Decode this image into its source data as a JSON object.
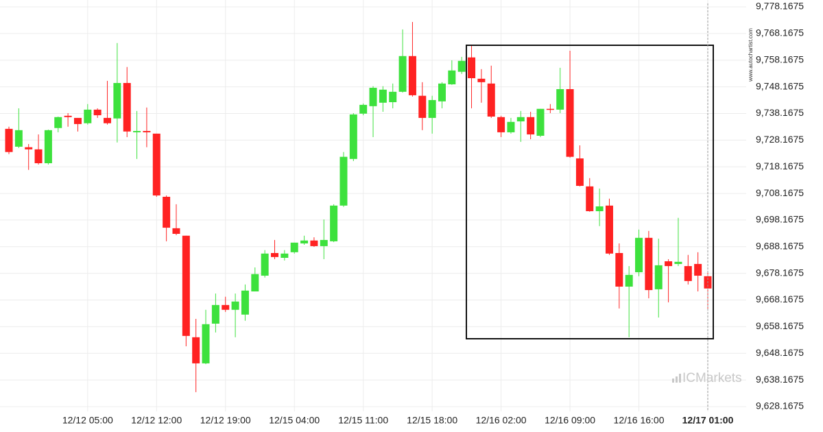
{
  "chart_data": {
    "type": "candlestick",
    "source": "www.autochartist.com",
    "brand": "ICMarkets",
    "up_color": "#3de13d",
    "down_color": "#ff2222",
    "grid": true,
    "categories": [
      null,
      null,
      null,
      null,
      null,
      null,
      null,
      null,
      "12/12 05:00",
      null,
      null,
      null,
      null,
      null,
      null,
      "12/12 12:00",
      null,
      null,
      null,
      null,
      null,
      null,
      "12/12 19:00",
      null,
      null,
      null,
      null,
      null,
      null,
      "12/15 04:00",
      null,
      null,
      null,
      null,
      null,
      null,
      "12/15 11:00",
      null,
      null,
      null,
      null,
      null,
      null,
      "12/15 18:00",
      null,
      null,
      null,
      null,
      null,
      null,
      "12/16 02:00",
      null,
      null,
      null,
      null,
      null,
      null,
      "12/16 09:00",
      null,
      null,
      null,
      null,
      null,
      null,
      "12/16 16:00",
      null,
      null,
      null,
      null,
      null,
      null,
      "12/17 01:00"
    ],
    "open": [
      9732.4,
      9725.7,
      9725.5,
      9724.7,
      9719.5,
      9732.7,
      9737.3,
      9736.5,
      9734.5,
      9739.6,
      9736.5,
      9736.3,
      9749.6,
      9731.1,
      9731.6,
      9730.6,
      9706.9,
      9695.1,
      9692.3,
      9654.2,
      9644.4,
      9659.3,
      9666.3,
      9664.5,
      9662.7,
      9671.4,
      9677.3,
      9685.8,
      9684.0,
      9686.1,
      9689.4,
      9690.5,
      9688.4,
      9690.2,
      9703.6,
      9721.1,
      9738.1,
      9740.9,
      9742.2,
      9742.4,
      9746.3,
      9759.7,
      9744.8,
      9736.5,
      9742.7,
      9749.1,
      9753.8,
      9759.2,
      9751.2,
      9749.4,
      9736.8,
      9731.1,
      9735.2,
      9736.8,
      9729.8,
      9739.9,
      9739.6,
      9747.3,
      9721.3,
      9710.8,
      9701.5,
      9703.6,
      9685.8,
      9673.2,
      9678.6,
      9691.5,
      9672.2,
      9682.7,
      9681.7,
      9680.9,
      9681.7,
      9677.1
    ],
    "high": [
      9733.2,
      9740.1,
      9726.7,
      9730.3,
      9732.1,
      9737.0,
      9738.3,
      9736.5,
      9741.7,
      9740.1,
      9750.4,
      9764.6,
      9755.6,
      9739.1,
      9740.4,
      9730.6,
      9707.4,
      9704.1,
      9692.3,
      9661.1,
      9664.5,
      9670.6,
      9669.4,
      9670.6,
      9674.0,
      9680.4,
      9686.9,
      9690.7,
      9686.9,
      9689.7,
      9692.3,
      9691.7,
      9698.4,
      9704.1,
      9723.7,
      9738.3,
      9741.9,
      9748.4,
      9748.4,
      9749.4,
      9769.7,
      9772.5,
      9749.9,
      9744.8,
      9749.9,
      9758.1,
      9759.4,
      9763.5,
      9754.8,
      9756.1,
      9737.3,
      9736.5,
      9739.1,
      9738.8,
      9739.9,
      9741.7,
      9755.3,
      9761.7,
      9726.2,
      9713.9,
      9710.0,
      9706.2,
      9689.4,
      9680.9,
      9694.6,
      9694.1,
      9691.2,
      9683.5,
      9699.0,
      9685.1,
      9686.1,
      9678.4
    ],
    "low": [
      9722.9,
      9725.2,
      9717.0,
      9719.0,
      9719.0,
      9731.1,
      9733.2,
      9731.4,
      9734.0,
      9736.5,
      9734.0,
      9727.3,
      9729.3,
      9721.1,
      9725.5,
      9706.9,
      9690.2,
      9692.5,
      9650.8,
      9633.6,
      9644.1,
      9656.0,
      9663.7,
      9654.2,
      9660.4,
      9671.4,
      9676.6,
      9683.5,
      9683.0,
      9685.6,
      9688.9,
      9688.1,
      9683.5,
      9689.9,
      9703.1,
      9720.3,
      9737.5,
      9729.3,
      9738.8,
      9740.1,
      9746.0,
      9744.5,
      9731.9,
      9730.6,
      9740.1,
      9748.9,
      9753.0,
      9740.1,
      9742.2,
      9736.5,
      9729.3,
      9730.6,
      9727.5,
      9728.5,
      9729.3,
      9738.3,
      9738.3,
      9721.6,
      9710.8,
      9701.3,
      9695.9,
      9685.1,
      9665.0,
      9654.2,
      9677.1,
      9668.8,
      9661.6,
      9667.3,
      9680.9,
      9674.0,
      9671.4,
      9664.5
    ],
    "close": [
      9723.7,
      9731.9,
      9724.7,
      9719.5,
      9731.9,
      9736.8,
      9736.8,
      9734.2,
      9739.6,
      9737.5,
      9734.5,
      9749.6,
      9731.4,
      9731.6,
      9731.1,
      9707.4,
      9695.3,
      9693.0,
      9654.7,
      9644.4,
      9659.1,
      9666.3,
      9664.5,
      9667.6,
      9671.7,
      9677.9,
      9685.6,
      9684.3,
      9685.6,
      9689.7,
      9690.5,
      9688.4,
      9690.7,
      9703.6,
      9721.9,
      9737.8,
      9741.4,
      9747.8,
      9747.1,
      9746.3,
      9759.7,
      9745.0,
      9736.5,
      9743.2,
      9749.4,
      9754.3,
      9757.9,
      9751.4,
      9749.9,
      9737.0,
      9731.1,
      9735.0,
      9736.8,
      9730.3,
      9739.9,
      9739.6,
      9747.3,
      9721.9,
      9711.0,
      9701.5,
      9703.3,
      9685.6,
      9673.2,
      9677.6,
      9691.5,
      9671.9,
      9681.2,
      9680.9,
      9682.5,
      9675.3,
      9677.3,
      9672.5
    ],
    "ylim": [
      9628.1675,
      9778.1675
    ],
    "yticks": [
      {
        "value": 9778.1675,
        "label": "9,778.1675"
      },
      {
        "value": 9768.1675,
        "label": "9,768.1675"
      },
      {
        "value": 9758.1675,
        "label": "9,758.1675"
      },
      {
        "value": 9748.1675,
        "label": "9,748.1675"
      },
      {
        "value": 9738.1675,
        "label": "9,738.1675"
      },
      {
        "value": 9728.1675,
        "label": "9,728.1675"
      },
      {
        "value": 9718.1675,
        "label": "9,718.1675"
      },
      {
        "value": 9708.1675,
        "label": "9,708.1675"
      },
      {
        "value": 9698.1675,
        "label": "9,698.1675"
      },
      {
        "value": 9688.1675,
        "label": "9,688.1675"
      },
      {
        "value": 9678.1675,
        "label": "9,678.1675"
      },
      {
        "value": 9668.1675,
        "label": "9,668.1675"
      },
      {
        "value": 9658.1675,
        "label": "9,658.1675"
      },
      {
        "value": 9648.1675,
        "label": "9,648.1675"
      },
      {
        "value": 9638.1675,
        "label": "9,638.1675"
      },
      {
        "value": 9628.1675,
        "label": "9,628.1675"
      }
    ]
  }
}
